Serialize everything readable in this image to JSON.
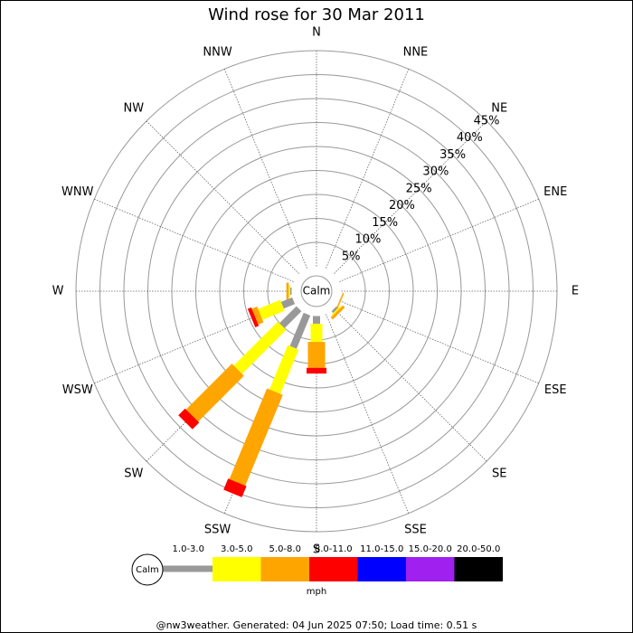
{
  "chart_data": {
    "type": "windrose",
    "title": "Wind rose for 30 Mar 2011",
    "calm_label": "Calm",
    "units": "mph",
    "footer": "@nw3weather. Generated: 04 Jun 2025 07:50; Load time: 0.51 s",
    "categories": [
      "N",
      "NNE",
      "NE",
      "ENE",
      "E",
      "ESE",
      "SE",
      "SSE",
      "S",
      "SSW",
      "SW",
      "WSW",
      "W",
      "WNW",
      "NW",
      "NNW"
    ],
    "ylim": [
      0,
      45
    ],
    "yticks": [
      {
        "value": 5,
        "label": "5%"
      },
      {
        "value": 10,
        "label": "10%"
      },
      {
        "value": 15,
        "label": "15%"
      },
      {
        "value": 20,
        "label": "20%"
      },
      {
        "value": 25,
        "label": "25%"
      },
      {
        "value": 30,
        "label": "30%"
      },
      {
        "value": 35,
        "label": "35%"
      },
      {
        "value": 40,
        "label": "40%"
      },
      {
        "value": 45,
        "label": "45%"
      }
    ],
    "series": [
      {
        "name": "1.0-3.0",
        "color": "#999999",
        "values": [
          0,
          0,
          0,
          0,
          0,
          0,
          0.5,
          0,
          1.6,
          7.5,
          5,
          2.5,
          0.3,
          0,
          0,
          0
        ]
      },
      {
        "name": "3.0-5.0",
        "color": "#ffff00",
        "values": [
          0,
          0,
          0,
          0,
          0,
          0,
          0.3,
          0,
          3.8,
          10,
          13,
          5,
          0.3,
          0,
          0,
          0
        ]
      },
      {
        "name": "5.0-8.0",
        "color": "#ffa500",
        "values": [
          0,
          0,
          0,
          0,
          0,
          0.3,
          0.6,
          0,
          5.4,
          20.5,
          13.5,
          1.2,
          0.5,
          0,
          0,
          0
        ]
      },
      {
        "name": "8.0-11.0",
        "color": "#ff0000",
        "values": [
          0,
          0,
          0,
          0,
          0,
          0,
          0,
          0,
          1.2,
          2.5,
          2,
          0.8,
          0,
          0,
          0,
          0
        ]
      },
      {
        "name": "11.0-15.0",
        "color": "#0000ff",
        "values": [
          0,
          0,
          0,
          0,
          0,
          0,
          0,
          0,
          0,
          0,
          0,
          0,
          0,
          0,
          0,
          0
        ]
      },
      {
        "name": "15.0-20.0",
        "color": "#a020f0",
        "values": [
          0,
          0,
          0,
          0,
          0,
          0,
          0,
          0,
          0,
          0,
          0,
          0,
          0,
          0,
          0,
          0
        ]
      },
      {
        "name": "20.0-50.0",
        "color": "#000000",
        "values": [
          0,
          0,
          0,
          0,
          0,
          0,
          0,
          0,
          0,
          0,
          0,
          0,
          0,
          0,
          0,
          0
        ]
      }
    ]
  }
}
